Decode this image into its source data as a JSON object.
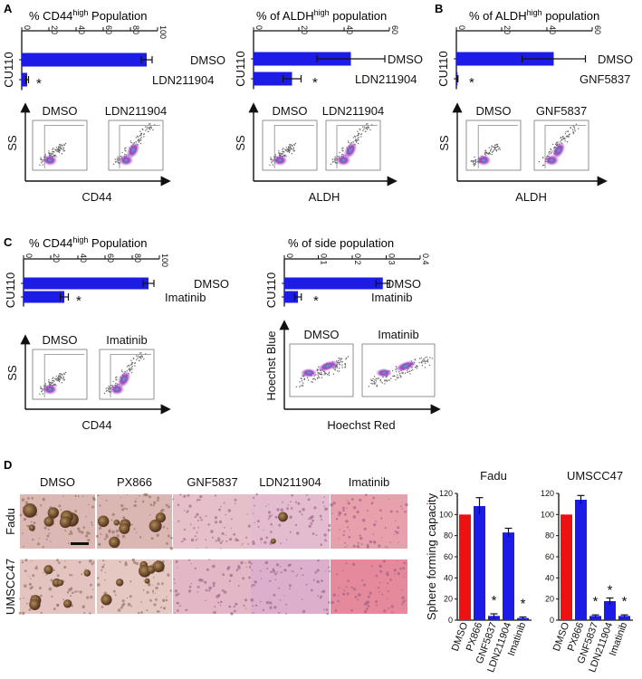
{
  "panels": {
    "A": {
      "letter": "A",
      "left": {
        "title_main": "% CD44",
        "title_sup": "high",
        "title_tail": " Population",
        "cell_line": "CU110",
        "ticks": [
          "0",
          "20",
          "40",
          "60",
          "80",
          "100"
        ],
        "conditions": [
          "DMSO",
          "LDN211904"
        ],
        "flow_labels": [
          "DMSO",
          "LDN211904"
        ],
        "y_axis": "SS",
        "x_axis": "CD44",
        "star": "*"
      },
      "right": {
        "title_main": "% of ALDH",
        "title_sup": "high",
        "title_tail": " population",
        "cell_line": "CU110",
        "ticks": [
          "0",
          "20",
          "40",
          "60"
        ],
        "conditions": [
          "DMSO",
          "LDN211904"
        ],
        "flow_labels": [
          "DMSO",
          "LDN211904"
        ],
        "y_axis": "SS",
        "x_axis": "ALDH",
        "star": "*"
      }
    },
    "B": {
      "letter": "B",
      "title_main": "% of ALDH",
      "title_sup": "high",
      "title_tail": " population",
      "cell_line": "CU110",
      "ticks": [
        "0",
        "20",
        "40",
        "60"
      ],
      "conditions": [
        "DMSO",
        "GNF5837"
      ],
      "flow_labels": [
        "DMSO",
        "GNF5837"
      ],
      "y_axis": "SS",
      "x_axis": "ALDH",
      "star": "*"
    },
    "C": {
      "letter": "C",
      "left": {
        "title_main": "% CD44",
        "title_sup": "high",
        "title_tail": " Population",
        "cell_line": "CU110",
        "ticks": [
          "0",
          "20",
          "40",
          "60",
          "80",
          "100"
        ],
        "conditions": [
          "DMSO",
          "Imatinib"
        ],
        "flow_labels": [
          "DMSO",
          "Imatinib"
        ],
        "y_axis": "SS",
        "x_axis": "CD44",
        "star": "*"
      },
      "right": {
        "title": "% of side population",
        "cell_line": "CU110",
        "ticks": [
          "0",
          "0.1",
          "0.2",
          "0.3",
          "0.4"
        ],
        "conditions": [
          "DMSO",
          "Imatinib"
        ],
        "flow_labels": [
          "DMSO",
          "Imatinib"
        ],
        "y_axis": "Hoechst Blue",
        "x_axis": "Hoechst Red",
        "star": "*"
      }
    },
    "D": {
      "letter": "D",
      "col_labels": [
        "DMSO",
        "PX866",
        "GNF5837",
        "LDN211904",
        "Imatinib"
      ],
      "row_labels": [
        "Fadu",
        "UMSCC47"
      ],
      "ylabel": "Sphere forming capacity",
      "yticks": [
        "0",
        "20",
        "40",
        "60",
        "80",
        "100",
        "120"
      ],
      "star": "*"
    }
  },
  "chart_data": [
    {
      "type": "bar",
      "orientation": "horizontal",
      "panel": "A",
      "title": "% CD44high Population",
      "ylabel": "CU110",
      "categories": [
        "DMSO",
        "LDN211904"
      ],
      "values": [
        92,
        4
      ],
      "errors": [
        4,
        1
      ],
      "xlim": [
        0,
        100
      ],
      "significant": [
        false,
        true
      ],
      "bar_color": "#1c1ce6"
    },
    {
      "type": "bar",
      "orientation": "horizontal",
      "panel": "A",
      "title": "% of ALDHhigh population",
      "ylabel": "CU110",
      "categories": [
        "DMSO",
        "LDN211904"
      ],
      "values": [
        43,
        17
      ],
      "errors": [
        15,
        4
      ],
      "xlim": [
        0,
        60
      ],
      "significant": [
        false,
        true
      ],
      "bar_color": "#1c1ce6"
    },
    {
      "type": "bar",
      "orientation": "horizontal",
      "panel": "B",
      "title": "% of ALDHhigh population",
      "ylabel": "CU110",
      "categories": [
        "DMSO",
        "GNF5837"
      ],
      "values": [
        43,
        0.5
      ],
      "errors": [
        14,
        0.2
      ],
      "xlim": [
        0,
        60
      ],
      "significant": [
        false,
        true
      ],
      "bar_color": "#1c1ce6"
    },
    {
      "type": "bar",
      "orientation": "horizontal",
      "panel": "C",
      "title": "% CD44high Population",
      "ylabel": "CU110",
      "categories": [
        "DMSO",
        "Imatinib"
      ],
      "values": [
        92,
        30
      ],
      "errors": [
        4,
        3
      ],
      "xlim": [
        0,
        100
      ],
      "significant": [
        false,
        true
      ],
      "bar_color": "#1c1ce6"
    },
    {
      "type": "bar",
      "orientation": "horizontal",
      "panel": "C",
      "title": "% of side population",
      "ylabel": "CU110",
      "categories": [
        "DMSO",
        "Imatinib"
      ],
      "values": [
        0.29,
        0.04
      ],
      "errors": [
        0.02,
        0.01
      ],
      "xlim": [
        0,
        0.4
      ],
      "significant": [
        false,
        true
      ],
      "bar_color": "#1c1ce6"
    },
    {
      "type": "bar",
      "panel": "D",
      "title": "Fadu",
      "ylabel": "Sphere forming capacity",
      "categories": [
        "DMSO",
        "PX866",
        "GNF5837",
        "LDN211904",
        "Imatinib"
      ],
      "values": [
        100,
        108,
        4,
        83,
        2
      ],
      "errors": [
        0,
        8,
        2,
        4,
        1
      ],
      "ylim": [
        0,
        120
      ],
      "significant": [
        false,
        false,
        true,
        false,
        true
      ],
      "colors": [
        "#ee1111",
        "#1c1ce6",
        "#1c1ce6",
        "#1c1ce6",
        "#1c1ce6"
      ]
    },
    {
      "type": "bar",
      "panel": "D",
      "title": "UMSCC47",
      "categories": [
        "DMSO",
        "PX866",
        "GNF5837",
        "LDN211904",
        "Imatinib"
      ],
      "values": [
        100,
        114,
        4,
        18,
        4
      ],
      "errors": [
        0,
        4,
        1,
        3,
        1
      ],
      "ylim": [
        0,
        120
      ],
      "significant": [
        false,
        false,
        true,
        true,
        true
      ],
      "colors": [
        "#ee1111",
        "#1c1ce6",
        "#1c1ce6",
        "#1c1ce6",
        "#1c1ce6"
      ]
    }
  ]
}
